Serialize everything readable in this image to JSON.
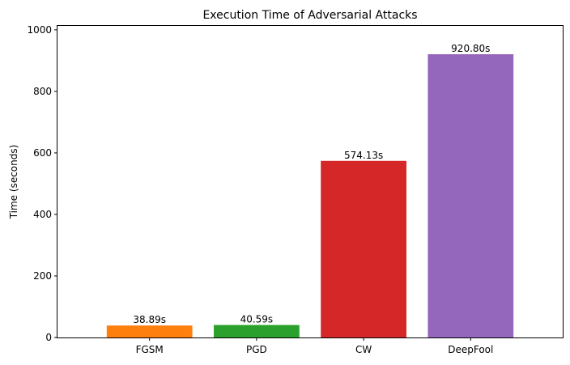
{
  "chart_data": {
    "type": "bar",
    "title": "Execution Time of Adversarial Attacks",
    "xlabel": "",
    "ylabel": "Time (seconds)",
    "categories": [
      "FGSM",
      "PGD",
      "CW",
      "DeepFool"
    ],
    "values": [
      38.89,
      40.59,
      574.13,
      920.8
    ],
    "value_labels": [
      "38.89s",
      "40.59s",
      "574.13s",
      "920.80s"
    ],
    "colors": [
      "#ff7f0e",
      "#2ca02c",
      "#d62728",
      "#9467bd"
    ],
    "ylim": [
      0,
      1012.88
    ],
    "yticks": [
      0,
      200,
      400,
      600,
      800,
      1000
    ],
    "ytick_labels": [
      "0",
      "200",
      "400",
      "600",
      "800",
      "1000"
    ],
    "grid": false,
    "legend": "none"
  }
}
